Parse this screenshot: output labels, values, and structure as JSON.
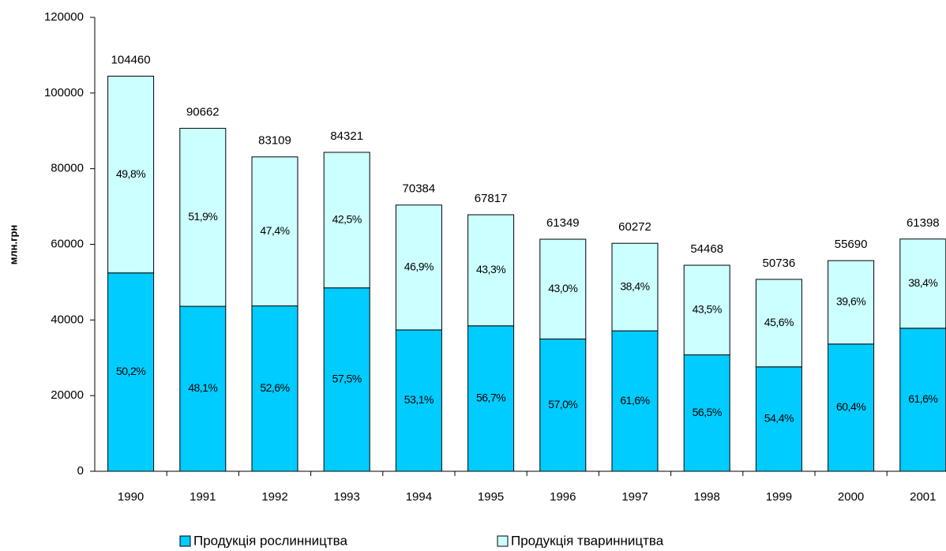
{
  "chart_data": {
    "type": "stacked_bar",
    "y_label": "млн.грн",
    "categories": [
      "1990",
      "1991",
      "1992",
      "1993",
      "1994",
      "1995",
      "1996",
      "1997",
      "1998",
      "1999",
      "2000",
      "2001"
    ],
    "series": [
      {
        "name": "Продукція рослинництва",
        "color": "#00ccff",
        "values": [
          52439,
          43608,
          43715,
          48485,
          37374,
          38452,
          34969,
          37128,
          30774,
          27600,
          33637,
          37821
        ],
        "percent_labels": [
          "50,2%",
          "48,1%",
          "52,6%",
          "57,5%",
          "53,1%",
          "56,7%",
          "57,0%",
          "61,6%",
          "56,5%",
          "54,4%",
          "60,4%",
          "61,6%"
        ]
      },
      {
        "name": "Продукція тваринництва",
        "color": "#ccffff",
        "values": [
          52021,
          47054,
          39394,
          35836,
          33010,
          29365,
          26380,
          23144,
          23694,
          23136,
          22053,
          23577
        ],
        "percent_labels": [
          "49,8%",
          "51,9%",
          "47,4%",
          "42,5%",
          "46,9%",
          "43,3%",
          "43,0%",
          "38,4%",
          "43,5%",
          "45,6%",
          "39,6%",
          "38,4%"
        ]
      }
    ],
    "totals": [
      104460,
      90662,
      83109,
      84321,
      70384,
      67817,
      61349,
      60272,
      54468,
      50736,
      55690,
      61398
    ],
    "ylim": [
      0,
      120000
    ],
    "yticks": [
      0,
      20000,
      40000,
      60000,
      80000,
      100000,
      120000
    ]
  }
}
